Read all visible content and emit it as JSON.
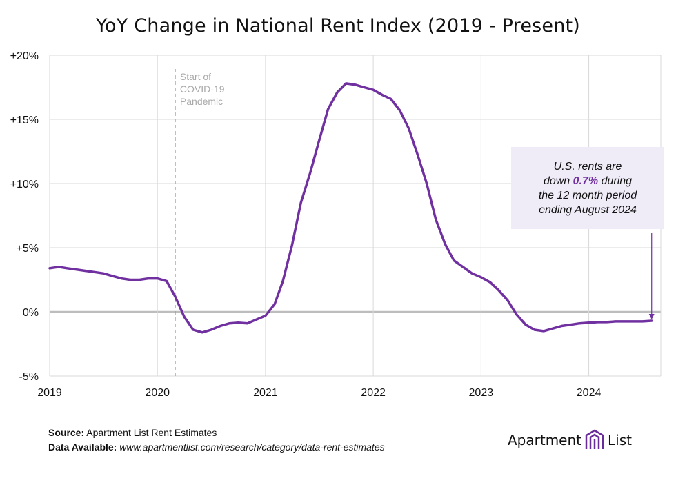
{
  "chart_data": {
    "type": "line",
    "title": "YoY Change in National Rent Index (2019 - Present)",
    "xlabel": "",
    "ylabel": "",
    "ylim": [
      -5,
      20
    ],
    "y_ticks": [
      "+20%",
      "+15%",
      "+10%",
      "+5%",
      "0%",
      "-5%"
    ],
    "x_ticks": [
      "2019",
      "2020",
      "2021",
      "2022",
      "2023",
      "2024"
    ],
    "grid": "horizontal",
    "series": [
      {
        "color": "#7030a0",
        "x": [
          "2019-01",
          "2019-02",
          "2019-03",
          "2019-04",
          "2019-05",
          "2019-06",
          "2019-07",
          "2019-08",
          "2019-09",
          "2019-10",
          "2019-11",
          "2019-12",
          "2020-01",
          "2020-02",
          "2020-03",
          "2020-04",
          "2020-05",
          "2020-06",
          "2020-07",
          "2020-08",
          "2020-09",
          "2020-10",
          "2020-11",
          "2020-12",
          "2021-01",
          "2021-02",
          "2021-03",
          "2021-04",
          "2021-05",
          "2021-06",
          "2021-07",
          "2021-08",
          "2021-09",
          "2021-10",
          "2021-11",
          "2021-12",
          "2022-01",
          "2022-02",
          "2022-03",
          "2022-04",
          "2022-05",
          "2022-06",
          "2022-07",
          "2022-08",
          "2022-09",
          "2022-10",
          "2022-11",
          "2022-12",
          "2023-01",
          "2023-02",
          "2023-03",
          "2023-04",
          "2023-05",
          "2023-06",
          "2023-07",
          "2023-08",
          "2023-09",
          "2023-10",
          "2023-11",
          "2023-12",
          "2024-01",
          "2024-02",
          "2024-03",
          "2024-04",
          "2024-05",
          "2024-06",
          "2024-07",
          "2024-08"
        ],
        "values": [
          3.4,
          3.5,
          3.4,
          3.3,
          3.2,
          3.1,
          3.0,
          2.8,
          2.6,
          2.5,
          2.5,
          2.6,
          2.6,
          2.4,
          1.2,
          -0.4,
          -1.4,
          -1.6,
          -1.4,
          -1.1,
          -0.9,
          -0.85,
          -0.9,
          -0.6,
          -0.3,
          0.6,
          2.4,
          5.2,
          8.5,
          10.8,
          13.3,
          15.8,
          17.1,
          17.8,
          17.7,
          17.5,
          17.3,
          16.9,
          16.6,
          15.7,
          14.3,
          12.2,
          10.0,
          7.2,
          5.3,
          4.0,
          3.5,
          3.0,
          2.7,
          2.3,
          1.7,
          0.9,
          -0.2,
          -1.0,
          -1.4,
          -1.5,
          -1.3,
          -1.1,
          -1.0,
          -0.9,
          -0.85,
          -0.8,
          -0.8,
          -0.75,
          -0.75,
          -0.75,
          -0.75,
          -0.7
        ]
      }
    ],
    "annotations": {
      "pandemic_note": [
        "Start of",
        "COVID-19",
        "Pandemic"
      ],
      "pandemic_date": "2020-03"
    }
  },
  "callout": {
    "line1": "U.S. rents are",
    "line2_before": "down ",
    "line2_highlight": "0.7%",
    "line2_after": " during",
    "line3": "the 12 month period",
    "line4": "ending August 2024"
  },
  "footer": {
    "source_label": "Source:",
    "source_text": " Apartment List Rent Estimates",
    "data_label": "Data Available:",
    "data_text": " www.apartmentlist.com/research/category/data-rent-estimates"
  },
  "logo": {
    "left": "Apartment",
    "right": "List"
  },
  "colors": {
    "line": "#7030a0",
    "grid": "#d9d9d9",
    "zero": "#bdbdbd",
    "callout_bg": "#efebf7"
  }
}
